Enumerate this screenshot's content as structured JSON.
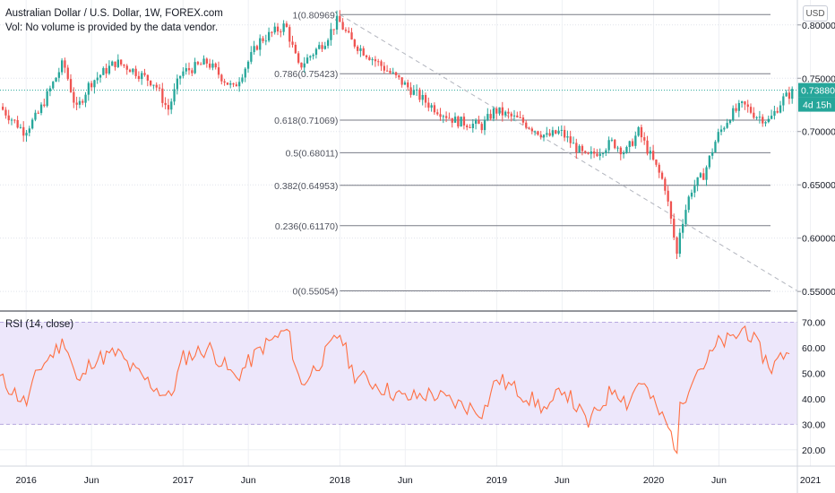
{
  "header": {
    "title": "Australian Dollar / U.S. Dollar, 1W, FOREX.com",
    "volume_note": "Vol: No volume is provided by the data vendor.",
    "currency": "USD"
  },
  "price_axis": {
    "ticks": [
      "0.80000",
      "0.75000",
      "0.70000",
      "0.65000",
      "0.60000",
      "0.55000"
    ],
    "current_price": "0.73880",
    "countdown": "4d 15h"
  },
  "fibonacci": {
    "levels": [
      {
        "label": "1(0.80969)",
        "value": 0.80969
      },
      {
        "label": "0.786(0.75423)",
        "value": 0.75423
      },
      {
        "label": "0.618(0.71069)",
        "value": 0.71069
      },
      {
        "label": "0.5(0.68011)",
        "value": 0.68011
      },
      {
        "label": "0.382(0.64953)",
        "value": 0.64953
      },
      {
        "label": "0.236(0.61170)",
        "value": 0.6117
      },
      {
        "label": "0(0.55054)",
        "value": 0.55054
      }
    ]
  },
  "rsi": {
    "label": "RSI (14, close)",
    "ticks": [
      "70.00",
      "60.00",
      "50.00",
      "40.00",
      "30.00",
      "20.00"
    ]
  },
  "time_axis": {
    "labels": [
      "2016",
      "Jun",
      "2017",
      "Jun",
      "2018",
      "Jun",
      "2019",
      "Jun",
      "2020",
      "Jun",
      "2021"
    ]
  },
  "colors": {
    "up": "#26a69a",
    "down": "#ef5350",
    "rsi_line": "#ff7043",
    "rsi_band": "#ede7fb",
    "price_label": "#26a69a",
    "fib_line": "#787b86",
    "trend_line": "#b2b5be"
  },
  "chart_data": [
    {
      "type": "line",
      "subtype": "candlestick",
      "title": "Australian Dollar / U.S. Dollar, 1W, FOREX.com",
      "ylim": [
        0.535,
        0.82
      ],
      "x_range": [
        "2015-11",
        "2020-12"
      ],
      "trend_line": {
        "from": [
          "2018-01",
          0.8097
        ],
        "to": [
          "2020-12",
          0.5505
        ]
      },
      "series": [
        {
          "x": [
            "2015-11",
            "2016-01",
            "2016-02",
            "2016-04",
            "2016-05",
            "2016-06",
            "2016-08",
            "2016-09",
            "2016-11",
            "2016-12",
            "2017-01",
            "2017-03",
            "2017-05",
            "2017-07",
            "2017-09",
            "2017-10",
            "2017-12",
            "2018-01",
            "2018-02",
            "2018-04",
            "2018-06",
            "2018-08",
            "2018-10",
            "2018-12",
            "2019-01",
            "2019-03",
            "2019-05",
            "2019-06",
            "2019-08",
            "2019-10",
            "2019-11",
            "2019-12",
            "2020-01",
            "2020-02",
            "2020-03",
            "2020-03",
            "2020-04",
            "2020-05",
            "2020-06",
            "2020-07",
            "2020-08",
            "2020-09",
            "2020-10",
            "2020-11",
            "2020-12"
          ],
          "values": [
            0.725,
            0.7,
            0.715,
            0.765,
            0.72,
            0.745,
            0.765,
            0.76,
            0.745,
            0.72,
            0.755,
            0.765,
            0.74,
            0.785,
            0.8,
            0.76,
            0.785,
            0.805,
            0.785,
            0.765,
            0.745,
            0.725,
            0.71,
            0.705,
            0.72,
            0.71,
            0.695,
            0.7,
            0.675,
            0.69,
            0.68,
            0.7,
            0.675,
            0.65,
            0.58,
            0.6,
            0.645,
            0.66,
            0.695,
            0.715,
            0.725,
            0.715,
            0.71,
            0.73,
            0.739
          ]
        }
      ]
    },
    {
      "type": "line",
      "title": "RSI (14, close)",
      "ylim": [
        15,
        73
      ],
      "band": [
        30,
        70
      ],
      "series": [
        {
          "x": [
            "2015-11",
            "2016-01",
            "2016-02",
            "2016-04",
            "2016-05",
            "2016-06",
            "2016-08",
            "2016-09",
            "2016-11",
            "2016-12",
            "2017-01",
            "2017-03",
            "2017-05",
            "2017-07",
            "2017-09",
            "2017-10",
            "2017-12",
            "2018-01",
            "2018-02",
            "2018-04",
            "2018-06",
            "2018-08",
            "2018-10",
            "2018-12",
            "2019-01",
            "2019-03",
            "2019-05",
            "2019-06",
            "2019-08",
            "2019-10",
            "2019-11",
            "2019-12",
            "2020-01",
            "2020-02",
            "2020-03",
            "2020-03",
            "2020-04",
            "2020-05",
            "2020-06",
            "2020-07",
            "2020-08",
            "2020-09",
            "2020-10",
            "2020-11",
            "2020-12"
          ],
          "values": [
            48,
            38,
            52,
            63,
            45,
            55,
            58,
            52,
            44,
            40,
            56,
            60,
            48,
            60,
            67,
            45,
            58,
            66,
            50,
            45,
            40,
            42,
            38,
            35,
            48,
            42,
            35,
            45,
            30,
            45,
            38,
            48,
            38,
            30,
            18,
            35,
            50,
            54,
            62,
            63,
            68,
            60,
            52,
            58,
            62
          ]
        }
      ]
    }
  ]
}
